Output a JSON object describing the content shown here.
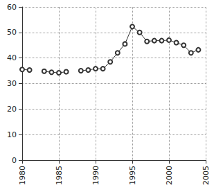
{
  "chart_data": {
    "type": "line",
    "x": [
      1980,
      1981,
      1982,
      1983,
      1984,
      1985,
      1986,
      1987,
      1988,
      1989,
      1990,
      1991,
      1992,
      1993,
      1994,
      1995,
      1996,
      1997,
      1998,
      1999,
      2000,
      2001,
      2002,
      2003,
      2004
    ],
    "values": [
      35.5,
      35.3,
      null,
      34.8,
      34.4,
      34.2,
      34.6,
      null,
      35.0,
      35.3,
      35.8,
      35.8,
      38.5,
      42.0,
      45.5,
      52.3,
      50.0,
      46.5,
      46.8,
      46.8,
      47.0,
      46.0,
      45.0,
      42.0,
      43.2
    ],
    "color": "#333333",
    "marker": "circle",
    "xlim": [
      1980,
      2005
    ],
    "xticks": [
      1980,
      1985,
      1990,
      1995,
      2000,
      2005
    ],
    "ylim": [
      0,
      60
    ],
    "yticks": [
      0,
      10,
      20,
      30,
      40,
      50,
      60
    ],
    "grid": true
  }
}
